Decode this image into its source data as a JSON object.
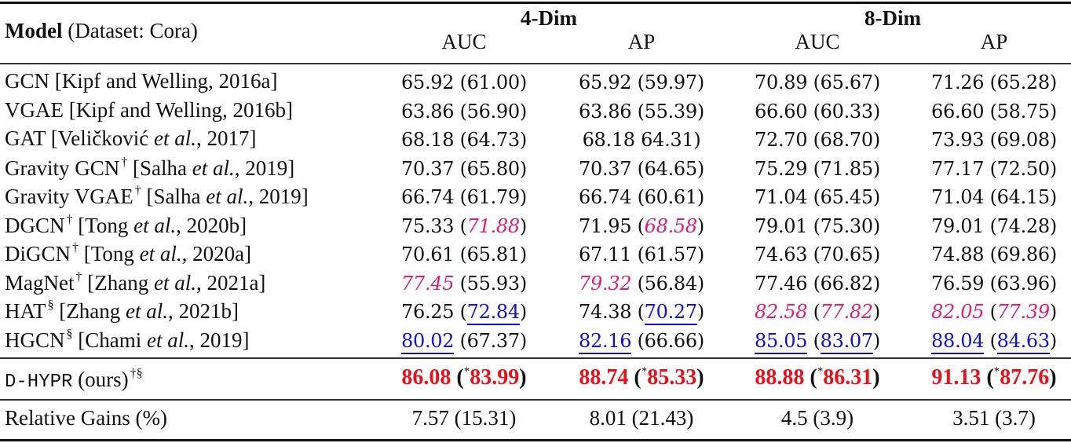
{
  "table": {
    "header": {
      "model_bold": "Model",
      "model_rest": " (Dataset: Cora)",
      "groups": [
        "4-Dim",
        "8-Dim"
      ],
      "columns": [
        "AUC",
        "AP",
        "AUC",
        "AP"
      ]
    },
    "rows": [
      {
        "name": "GCN [Kipf and Welling, 2016a]",
        "sup": "",
        "cells": [
          {
            "a": "65.92",
            "b": "61.00"
          },
          {
            "a": "65.92",
            "b": "59.97"
          },
          {
            "a": "70.89",
            "b": "65.67"
          },
          {
            "a": "71.26",
            "b": "65.28"
          }
        ]
      },
      {
        "name": "VGAE [Kipf and Welling, 2016b]",
        "sup": "",
        "cells": [
          {
            "a": "63.86",
            "b": "56.90"
          },
          {
            "a": "63.86",
            "b": "55.39"
          },
          {
            "a": "66.60",
            "b": "60.33"
          },
          {
            "a": "66.60",
            "b": "58.75"
          }
        ]
      },
      {
        "name_pre": "GAT [Veličković ",
        "name_it": "et al.",
        "name_post": ", 2017]",
        "sup": "",
        "cells": [
          {
            "a": "68.18",
            "b": "64.73"
          },
          {
            "a": "68.18",
            "b": "64.31",
            "missing_open_paren": true
          },
          {
            "a": "72.70",
            "b": "68.70"
          },
          {
            "a": "73.93",
            "b": "69.08"
          }
        ]
      },
      {
        "name_pre": "Gravity GCN",
        "sup": "†",
        "name_mid": " [Salha ",
        "name_it": "et al.",
        "name_post": ", 2019]",
        "cells": [
          {
            "a": "70.37",
            "b": "65.80"
          },
          {
            "a": "70.37",
            "b": "64.65"
          },
          {
            "a": "75.29",
            "b": "71.85"
          },
          {
            "a": "77.17",
            "b": "72.50"
          }
        ]
      },
      {
        "name_pre": "Gravity VGAE",
        "sup": "†",
        "name_mid": " [Salha ",
        "name_it": "et al.",
        "name_post": ", 2019]",
        "cells": [
          {
            "a": "66.74",
            "b": "61.79"
          },
          {
            "a": "66.74",
            "b": "60.61"
          },
          {
            "a": "71.04",
            "b": "65.45"
          },
          {
            "a": "71.04",
            "b": "64.15"
          }
        ]
      },
      {
        "name_pre": "DGCN",
        "sup": "†",
        "name_mid": " [Tong ",
        "name_it": "et al.",
        "name_post": ", 2020b]",
        "cells": [
          {
            "a": "75.33",
            "b": "71.88",
            "b_style": "pink"
          },
          {
            "a": "71.95",
            "b": "68.58",
            "b_style": "pink"
          },
          {
            "a": "79.01",
            "b": "75.30"
          },
          {
            "a": "79.01",
            "b": "74.28"
          }
        ]
      },
      {
        "name_pre": "DiGCN",
        "sup": "†",
        "name_mid": " [Tong ",
        "name_it": "et al.",
        "name_post": ", 2020a]",
        "cells": [
          {
            "a": "70.61",
            "b": "65.81"
          },
          {
            "a": "67.11",
            "b": "61.57"
          },
          {
            "a": "74.63",
            "b": "70.65"
          },
          {
            "a": "74.88",
            "b": "69.86"
          }
        ]
      },
      {
        "name_pre": "MagNet",
        "sup": "†",
        "name_mid": " [Zhang ",
        "name_it": "et al.",
        "name_post": ", 2021a]",
        "cells": [
          {
            "a": "77.45",
            "a_style": "pink",
            "b": "55.93"
          },
          {
            "a": "79.32",
            "a_style": "pink",
            "b": "56.84"
          },
          {
            "a": "77.46",
            "b": "66.82"
          },
          {
            "a": "76.59",
            "b": "63.96"
          }
        ]
      },
      {
        "name_pre": "HAT",
        "sup": "§",
        "name_mid": "  [Zhang ",
        "name_it": "et al.",
        "name_post": ", 2021b]",
        "cells": [
          {
            "a": "76.25",
            "b": "72.84",
            "b_style": "blue"
          },
          {
            "a": "74.38",
            "b": "70.27",
            "b_style": "blue"
          },
          {
            "a": "82.58",
            "a_style": "pink",
            "b": "77.82",
            "b_style": "pink"
          },
          {
            "a": "82.05",
            "a_style": "pink",
            "b": "77.39",
            "b_style": "pink"
          }
        ]
      },
      {
        "name_pre": "HGCN",
        "sup": "§",
        "name_mid": "  [Chami ",
        "name_it": "et al.",
        "name_post": ", 2019]",
        "cells": [
          {
            "a": "80.02",
            "a_style": "blue",
            "b": "67.37"
          },
          {
            "a": "82.16",
            "a_style": "blue",
            "b": "66.66"
          },
          {
            "a": "85.05",
            "a_style": "blue",
            "b": "83.07",
            "b_style": "blue"
          },
          {
            "a": "88.04",
            "a_style": "blue",
            "b": "84.63",
            "b_style": "blue"
          }
        ]
      }
    ],
    "ours": {
      "name_mono": "D-HYPR",
      "name_rest": " (ours)",
      "sup": "†§",
      "star": "*",
      "cells": [
        {
          "a": "86.08",
          "b": "83.99"
        },
        {
          "a": "88.74",
          "b": "85.33"
        },
        {
          "a": "88.88",
          "b": "86.31"
        },
        {
          "a": "91.13",
          "b": "87.76"
        }
      ]
    },
    "gains": {
      "label": "Relative Gains (%)",
      "cells": [
        "7.57 (15.31)",
        "8.01 (21.43)",
        "4.5 (3.9)",
        "3.51 (3.7)"
      ]
    },
    "colors": {
      "best": "#e8101a",
      "second": "#1010d0",
      "third": "#d9207a"
    }
  }
}
